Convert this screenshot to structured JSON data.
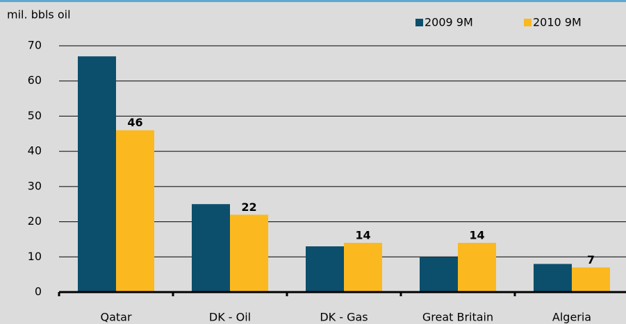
{
  "chart_data": {
    "type": "bar",
    "y_label": "mil. bbls oil",
    "categories": [
      "Qatar",
      "DK - Oil",
      "DK - Gas",
      "Great Britain",
      "Algeria"
    ],
    "series": [
      {
        "name": "2009 9M",
        "color": "#0b4f6c",
        "values": [
          67,
          25,
          13,
          10,
          8
        ],
        "data_labels": false
      },
      {
        "name": "2010 9M",
        "color": "#fbb91f",
        "values": [
          46,
          22,
          14,
          14,
          7
        ],
        "data_labels": true
      }
    ],
    "ylim": [
      0,
      70
    ],
    "yticks": [
      0,
      10,
      20,
      30,
      40,
      50,
      60,
      70
    ],
    "grid": true,
    "legend": "top-right"
  }
}
